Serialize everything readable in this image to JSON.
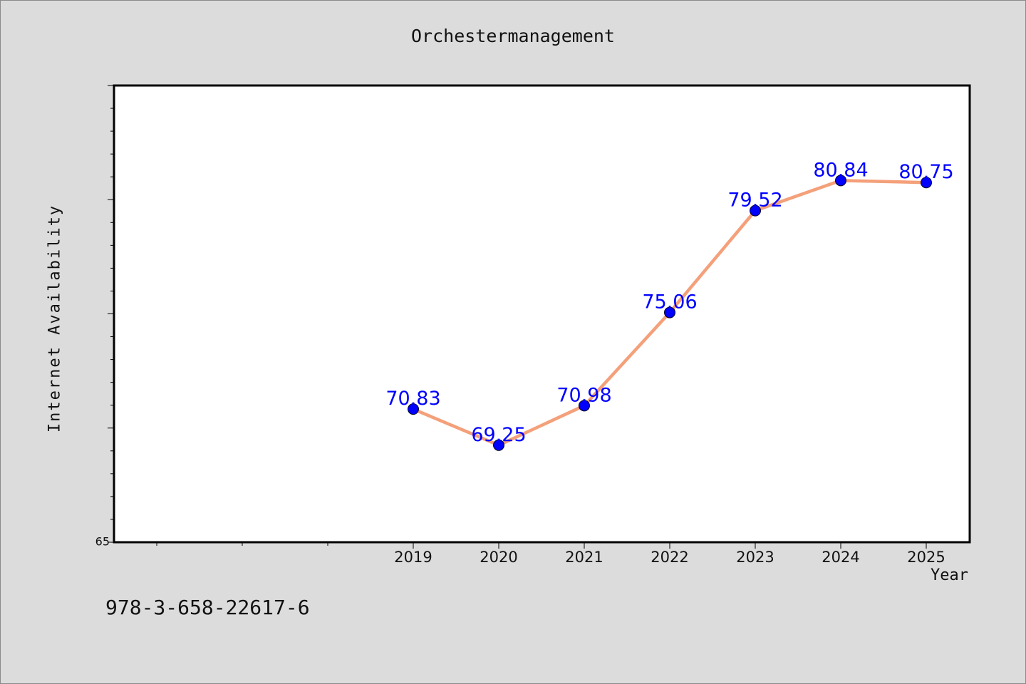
{
  "chart_data": {
    "type": "line",
    "title": "Orchestermanagement",
    "xlabel": "Year",
    "ylabel": "Internet Availability",
    "categories": [
      "2019",
      "2020",
      "2021",
      "2022",
      "2023",
      "2024",
      "2025"
    ],
    "series": [
      {
        "values": [
          70.83,
          69.25,
          70.98,
          75.06,
          79.52,
          80.84,
          80.75
        ],
        "value_labels": [
          "70.83",
          "69.25",
          "70.98",
          "75.06",
          "79.52",
          "80.84",
          "80.75"
        ],
        "line_color": "#f4a07a",
        "marker_color": "#0000ff",
        "label_color": "#0000ff"
      }
    ],
    "ylim": [
      65,
      85
    ],
    "yticks_labeled": [
      "65"
    ],
    "grid": false,
    "legend": "none"
  },
  "colors": {
    "background": "#dcdcdc",
    "plot_area": "#ffffff"
  },
  "footer_text": "978-3-658-22617-6"
}
